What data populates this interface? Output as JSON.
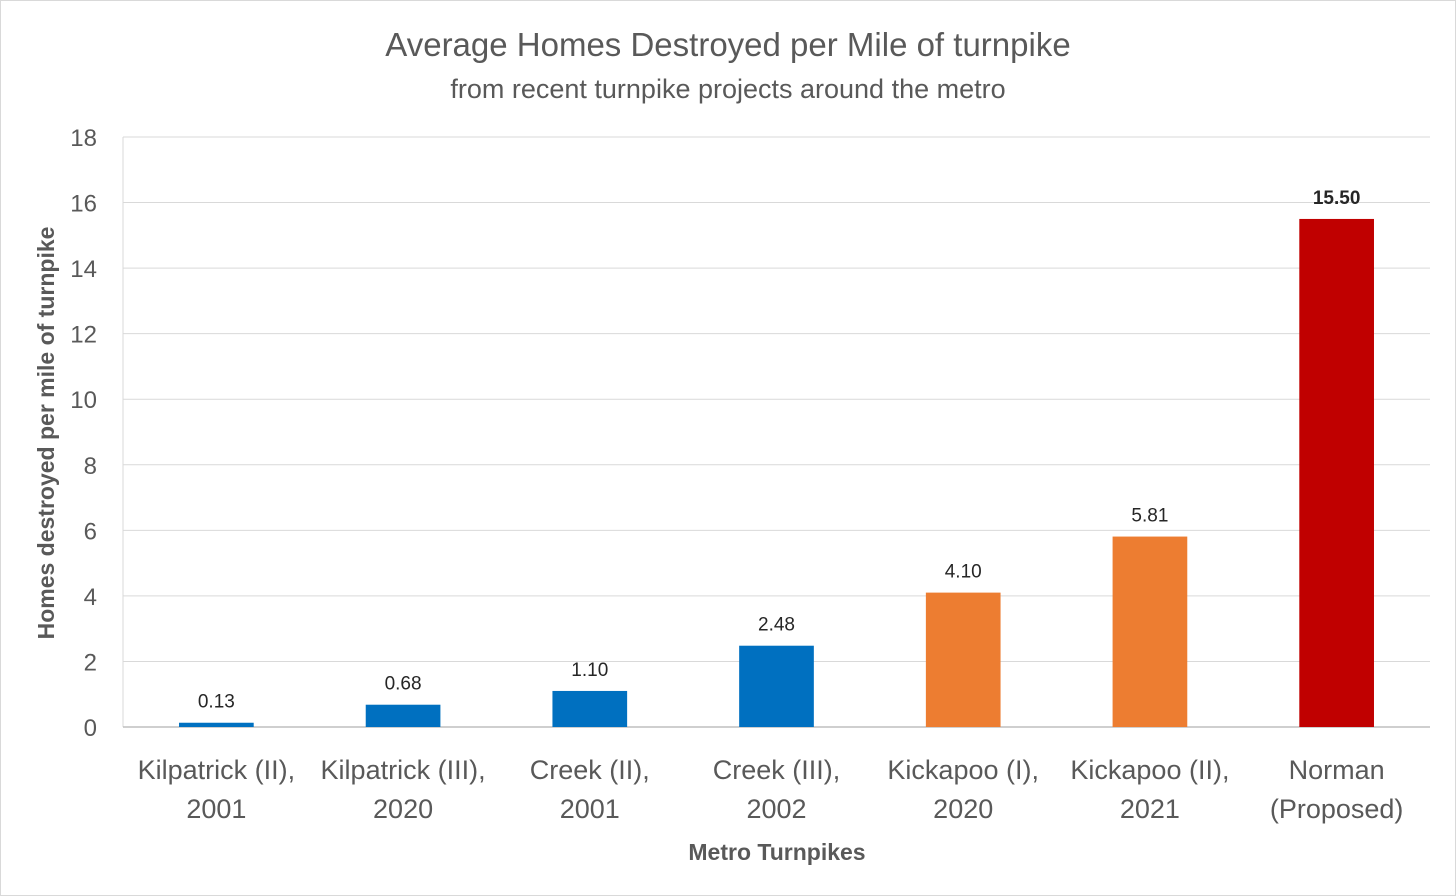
{
  "chart_data": {
    "type": "bar",
    "title": "Average Homes Destroyed per Mile of turnpike",
    "subtitle": "from recent turnpike projects around the metro",
    "xlabel": "Metro Turnpikes",
    "ylabel": "Homes destroyed per mile of turnpike",
    "ylim": [
      0,
      18
    ],
    "yticks": [
      0,
      2,
      4,
      6,
      8,
      10,
      12,
      14,
      16,
      18
    ],
    "grid": true,
    "categories": [
      [
        "Kilpatrick (II),",
        "2001"
      ],
      [
        "Kilpatrick (III),",
        "2020"
      ],
      [
        "Creek (II),",
        "2001"
      ],
      [
        "Creek (III),",
        "2002"
      ],
      [
        "Kickapoo (I),",
        "2020"
      ],
      [
        "Kickapoo (II),",
        "2021"
      ],
      [
        "Norman",
        "(Proposed)"
      ]
    ],
    "values": [
      0.13,
      0.68,
      1.1,
      2.48,
      4.1,
      5.81,
      15.5
    ],
    "data_labels": [
      "0.13",
      "0.68",
      "1.10",
      "2.48",
      "4.10",
      "5.81",
      "15.50"
    ],
    "bar_colors": [
      "#0070c0",
      "#0070c0",
      "#0070c0",
      "#0070c0",
      "#ed7d31",
      "#ed7d31",
      "#c00000"
    ],
    "label_colors": [
      "#262626",
      "#262626",
      "#262626",
      "#262626",
      "#262626",
      "#262626",
      "#c00000"
    ],
    "colors": {
      "grid": "#d9d9d9",
      "axis": "#bfbfbf"
    }
  }
}
